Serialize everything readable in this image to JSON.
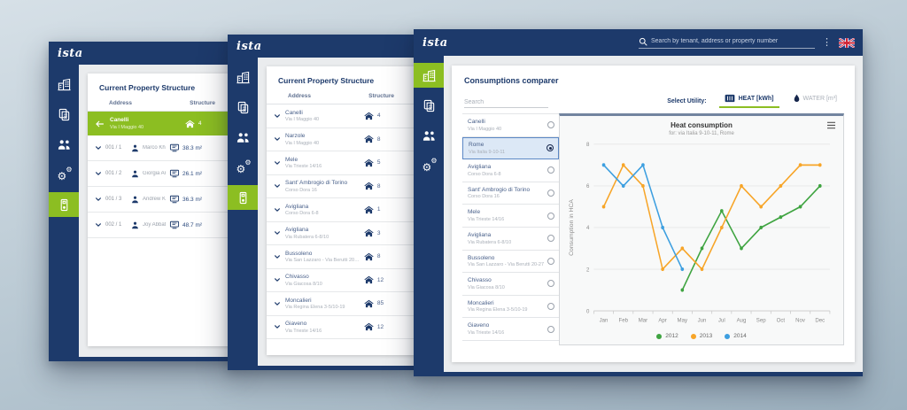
{
  "colors": {
    "brand_navy": "#1d3a6b",
    "brand_green": "#8cbe22",
    "selected_row_bg": "#dce8f6",
    "selected_row_border": "#5b87c5"
  },
  "windows": {
    "left": {
      "logo": "ista",
      "title": "Current Property Structure",
      "columns": {
        "address": "Address",
        "structure": "Structure"
      },
      "sidebar": [
        {
          "id": "properties",
          "icon": "buildings",
          "active": false
        },
        {
          "id": "documents",
          "icon": "documents",
          "active": false
        },
        {
          "id": "tenants",
          "icon": "users",
          "active": false
        },
        {
          "id": "settings",
          "icon": "settings",
          "active": false
        },
        {
          "id": "devices",
          "icon": "devices",
          "active": true
        }
      ],
      "selected_property": {
        "city": "Canelli",
        "street": "Via I Maggio 40",
        "count": "4"
      },
      "tenants": [
        {
          "unit": "001 / 1",
          "name": "Marco Khan",
          "area": "38.3 m²"
        },
        {
          "unit": "001 / 2",
          "name": "Giorgia Armani",
          "area": "26.1 m²"
        },
        {
          "unit": "001 / 3",
          "name": "Andrew Kowalsky",
          "area": "36.3 m²"
        },
        {
          "unit": "002 / 1",
          "name": "Joy Abbate",
          "area": "48.7 m²"
        }
      ]
    },
    "middle": {
      "logo": "ista",
      "title": "Current Property Structure",
      "columns": {
        "address": "Address",
        "structure": "Structure"
      },
      "sidebar": [
        {
          "id": "properties",
          "icon": "buildings",
          "active": false
        },
        {
          "id": "documents",
          "icon": "documents",
          "active": false
        },
        {
          "id": "tenants",
          "icon": "users",
          "active": false
        },
        {
          "id": "settings",
          "icon": "settings",
          "active": false
        },
        {
          "id": "devices",
          "icon": "devices",
          "active": true
        }
      ],
      "properties": [
        {
          "city": "Canelli",
          "street": "Via I Maggio 40",
          "count": "4"
        },
        {
          "city": "Narzole",
          "street": "Via I Maggio 40",
          "count": "8"
        },
        {
          "city": "Mele",
          "street": "Via Trieste 14/16",
          "count": "5"
        },
        {
          "city": "Sant' Ambrogio di Torino",
          "street": "Corso Dora 16",
          "count": "8"
        },
        {
          "city": "Avigliana",
          "street": "Corso Dora 6-8",
          "count": "1"
        },
        {
          "city": "Avigliana",
          "street": "Via Rubatera 6-8/10",
          "count": "3"
        },
        {
          "city": "Bussoleno",
          "street": "Via San Lazzaro - Via Berutti 20-27",
          "count": "8"
        },
        {
          "city": "Chivasso",
          "street": "Via Giacosa 8/10",
          "count": "12"
        },
        {
          "city": "Moncalieri",
          "street": "Via Regina Elena 3-5/10-19",
          "count": "85"
        },
        {
          "city": "Giaveno",
          "street": "Via Trieste 14/16",
          "count": "12"
        }
      ]
    },
    "front": {
      "logo": "ista",
      "header": {
        "search_placeholder": "Search by tenant, address or property number"
      },
      "sidebar": [
        {
          "id": "properties",
          "icon": "buildings",
          "active": true
        },
        {
          "id": "documents",
          "icon": "documents",
          "active": false
        },
        {
          "id": "tenants",
          "icon": "users",
          "active": false
        },
        {
          "id": "settings",
          "icon": "settings",
          "active": false
        }
      ],
      "title": "Consumptions comparer",
      "search_placeholder": "Search",
      "select_utility_label": "Select Utility:",
      "utilities": [
        {
          "id": "heat",
          "label": "HEAT [kWh]",
          "icon": "radiator",
          "active": true
        },
        {
          "id": "water",
          "label": "WATER [m³]",
          "icon": "droplet",
          "active": false
        }
      ],
      "properties": [
        {
          "city": "Canelli",
          "street": "Via I Maggio 40",
          "selected": false
        },
        {
          "city": "Rome",
          "street": "Via Italia 9-10-11",
          "selected": true
        },
        {
          "city": "Avigliana",
          "street": "Corso Dora 6-8",
          "selected": false
        },
        {
          "city": "Sant' Ambrogio di Torino",
          "street": "Corso Dora 16",
          "selected": false
        },
        {
          "city": "Mele",
          "street": "Via Trieste 14/16",
          "selected": false
        },
        {
          "city": "Avigliana",
          "street": "Via Rubatera 6-8/10",
          "selected": false
        },
        {
          "city": "Bussoleno",
          "street": "Via San Lazzaro - Via Berutti 20-27",
          "selected": false
        },
        {
          "city": "Chivasso",
          "street": "Via Giacosa 8/10",
          "selected": false
        },
        {
          "city": "Moncalieri",
          "street": "Via Regina Elena 3-5/10-19",
          "selected": false
        },
        {
          "city": "Giaveno",
          "street": "Via Trieste 14/16",
          "selected": false
        }
      ]
    }
  },
  "chart_data": {
    "type": "line",
    "title": "Heat consumption",
    "subtitle": "for: via Italia 9-10-11, Rome",
    "ylabel": "Consumption in HCA",
    "ylim": [
      0,
      8
    ],
    "yticks": [
      0,
      2,
      4,
      6,
      8
    ],
    "grid": "horizontal",
    "legend_position": "bottom",
    "categories": [
      "Jan",
      "Feb",
      "Mar",
      "Apr",
      "May",
      "Jun",
      "Jul",
      "Aug",
      "Sep",
      "Oct",
      "Nov",
      "Dec"
    ],
    "series": [
      {
        "name": "2012",
        "color": "#3fa441",
        "values": [
          null,
          null,
          null,
          null,
          1,
          3,
          4.8,
          3,
          4,
          4.5,
          5,
          6
        ]
      },
      {
        "name": "2013",
        "color": "#f7a528",
        "values": [
          5,
          7,
          6,
          2,
          3,
          2,
          4,
          6,
          5,
          6,
          7,
          7
        ]
      },
      {
        "name": "2014",
        "color": "#3d9fe0",
        "values": [
          7,
          6,
          7,
          4,
          2,
          null,
          null,
          null,
          null,
          null,
          null,
          null
        ]
      }
    ]
  }
}
